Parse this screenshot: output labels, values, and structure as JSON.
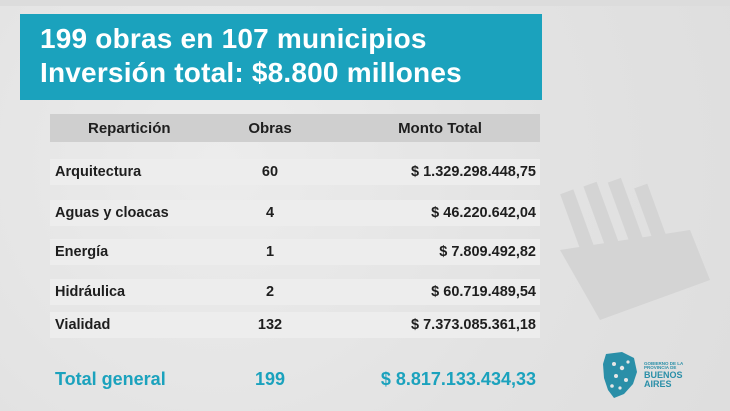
{
  "header": {
    "line1": "199 obras en 107 municipios",
    "line2": "Inversión total: $8.800 millones"
  },
  "table": {
    "columns": [
      "Repartición",
      "Obras",
      "Monto Total"
    ],
    "rows": [
      {
        "reparticion": "Arquitectura",
        "obras": "60",
        "monto": "$ 1.329.298.448,75"
      },
      {
        "reparticion": "Aguas y cloacas",
        "obras": "4",
        "monto": "$ 46.220.642,04"
      },
      {
        "reparticion": "Energía",
        "obras": "1",
        "monto": "$ 7.809.492,82"
      },
      {
        "reparticion": "Hidráulica",
        "obras": "2",
        "monto": "$ 60.719.489,54"
      },
      {
        "reparticion": "Vialidad",
        "obras": "132",
        "monto": "$ 7.373.085.361,18"
      }
    ],
    "total": {
      "label": "Total general",
      "obras": "199",
      "monto": "$ 8.817.133.434,33"
    }
  },
  "logo": {
    "line1": "GOBIERNO DE LA",
    "line2": "PROVINCIA DE",
    "line3": "BUENOS",
    "line4": "AIRES"
  },
  "colors": {
    "accent": "#1ba2bd",
    "background": "#e6e6e6",
    "header_row": "#cfcfcf"
  }
}
